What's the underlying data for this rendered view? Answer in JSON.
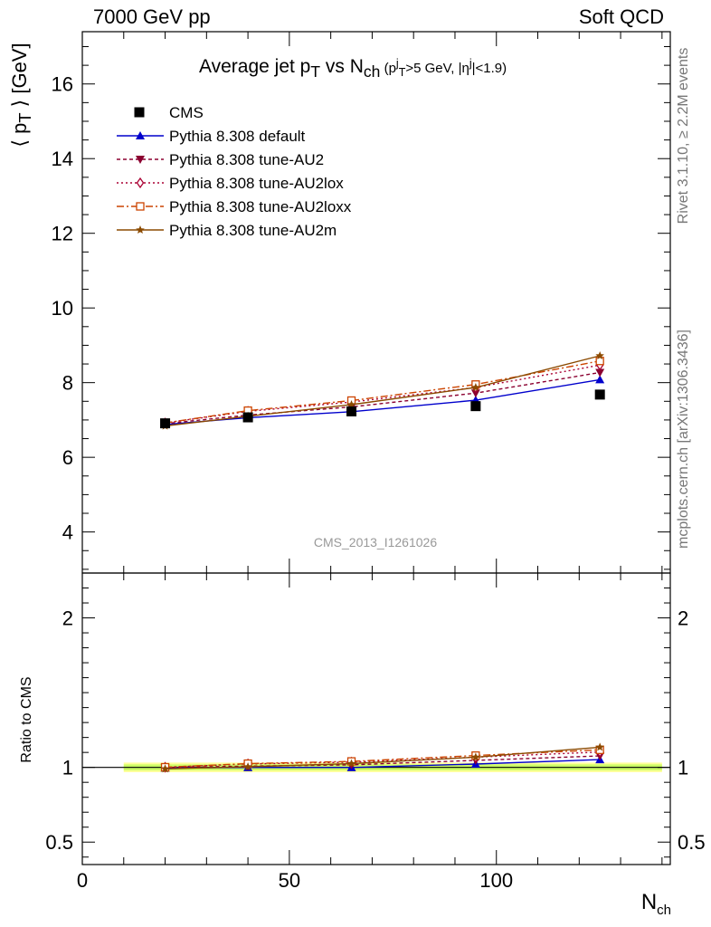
{
  "header": {
    "left": "7000 GeV pp",
    "right": "Soft QCD"
  },
  "side_text": {
    "top": "Rivet 3.1.10, ≥ 2.2M events",
    "bottom": "mcplots.cern.ch [arXiv:1306.3436]"
  },
  "watermark": "CMS_2013_I1261026",
  "chart_data": [
    {
      "type": "line",
      "title_parts": {
        "main": "Average jet p",
        "main_sub": "T",
        "vs": " vs N",
        "vs_sub": "ch",
        "cut_open": " (p",
        "cut_sup": "j",
        "cut_sub": "T",
        "cut_mid": ">5 GeV, |η",
        "cut_sup2": "j",
        "cut_close": "|<1.9)"
      },
      "ylabel_parts": {
        "open": "⟨ p",
        "sub": "T",
        "close": " ⟩ [GeV]"
      },
      "xlim": [
        0,
        142
      ],
      "ylim": [
        2.9,
        17.4
      ],
      "yticks": [
        4,
        6,
        8,
        10,
        12,
        14,
        16
      ],
      "xticks": [
        0,
        50,
        100
      ],
      "legend_position": "top-left",
      "data_series": {
        "name": "CMS",
        "x": [
          20,
          40,
          65,
          95,
          125
        ],
        "y": [
          6.91,
          7.07,
          7.23,
          7.37,
          7.68
        ],
        "color": "#000000"
      },
      "series": [
        {
          "name": "Pythia 8.308 default",
          "x": [
            20,
            40,
            65,
            95,
            125
          ],
          "y": [
            6.88,
            7.06,
            7.22,
            7.53,
            8.08
          ],
          "color": "#0000cc",
          "marker": "triangle-up",
          "dash": ""
        },
        {
          "name": "Pythia 8.308 tune-AU2",
          "x": [
            20,
            40,
            65,
            95,
            125
          ],
          "y": [
            6.9,
            7.13,
            7.35,
            7.72,
            8.27
          ],
          "color": "#8b0030",
          "marker": "triangle-down",
          "dash": "4,3"
        },
        {
          "name": "Pythia 8.308 tune-AU2lox",
          "x": [
            20,
            40,
            65,
            95,
            125
          ],
          "y": [
            6.92,
            7.23,
            7.48,
            7.87,
            8.47
          ],
          "color": "#aa0033",
          "marker": "diamond-open",
          "dash": "2,3"
        },
        {
          "name": "Pythia 8.308 tune-AU2loxx",
          "x": [
            20,
            40,
            65,
            95,
            125
          ],
          "y": [
            6.92,
            7.25,
            7.52,
            7.95,
            8.58
          ],
          "color": "#cc4400",
          "marker": "square-open",
          "dash": "8,3,2,3"
        },
        {
          "name": "Pythia 8.308 tune-AU2m",
          "x": [
            20,
            40,
            65,
            95,
            125
          ],
          "y": [
            6.84,
            7.1,
            7.41,
            7.87,
            8.72
          ],
          "color": "#8b4a00",
          "marker": "star",
          "dash": ""
        }
      ]
    },
    {
      "type": "line",
      "ylabel": "Ratio to CMS",
      "xlabel": "N",
      "xlabel_sub": "ch",
      "xlim": [
        0,
        142
      ],
      "ylim": [
        0.35,
        2.3
      ],
      "yticks": [
        0.5,
        1,
        2
      ],
      "ytick_labels": [
        "0.5",
        "1",
        "2"
      ],
      "xticks": [
        0,
        50,
        100
      ],
      "band_color": "#ccff66",
      "band_edge_color": "#ffff99",
      "band_x": [
        10,
        140
      ],
      "band_halfwidth": 0.02,
      "series": [
        {
          "name": "Pythia 8.308 default",
          "x": [
            20,
            40,
            65,
            95,
            125
          ],
          "y": [
            0.996,
            0.999,
            0.999,
            1.022,
            1.052
          ]
        },
        {
          "name": "Pythia 8.308 tune-AU2",
          "x": [
            20,
            40,
            65,
            95,
            125
          ],
          "y": [
            0.999,
            1.008,
            1.017,
            1.047,
            1.077
          ]
        },
        {
          "name": "Pythia 8.308 tune-AU2lox",
          "x": [
            20,
            40,
            65,
            95,
            125
          ],
          "y": [
            1.001,
            1.023,
            1.035,
            1.068,
            1.103
          ]
        },
        {
          "name": "Pythia 8.308 tune-AU2loxx",
          "x": [
            20,
            40,
            65,
            95,
            125
          ],
          "y": [
            1.001,
            1.025,
            1.04,
            1.079,
            1.117
          ]
        },
        {
          "name": "Pythia 8.308 tune-AU2m",
          "x": [
            20,
            40,
            65,
            95,
            125
          ],
          "y": [
            0.99,
            1.004,
            1.025,
            1.068,
            1.135
          ]
        }
      ]
    }
  ]
}
